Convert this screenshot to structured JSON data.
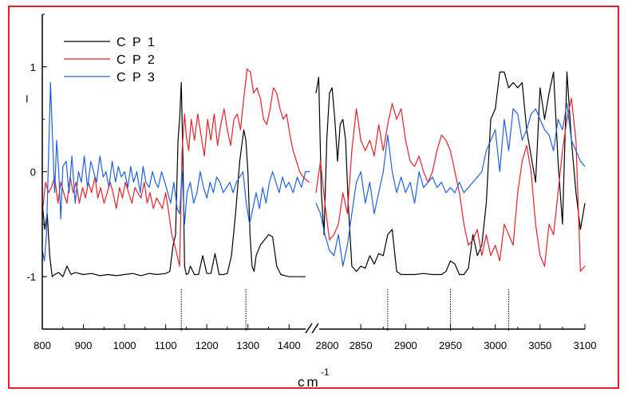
{
  "chart_data": {
    "type": "line",
    "title": "",
    "xlabel": "cm",
    "xlabel_superscript": "-1",
    "ylabel": "",
    "ylim": [
      -1.5,
      1.5
    ],
    "y_ticks": [
      {
        "value": 1,
        "label": "1"
      },
      {
        "value": 0,
        "label": "0"
      },
      {
        "value": -1,
        "label": "-1"
      }
    ],
    "y_stray_mark": "I",
    "legend_position": "top-left",
    "grid": false,
    "frame_color": "#e8202a",
    "axis_break": true,
    "segments": [
      {
        "name": "low",
        "xlim": [
          800,
          1450
        ],
        "ticks": [
          800,
          900,
          1000,
          1100,
          1200,
          1300,
          1400
        ],
        "tick_labels": [
          "800",
          "900",
          "1000",
          "1100",
          "1200",
          "1300",
          "1400"
        ]
      },
      {
        "name": "high",
        "xlim": [
          2800,
          3100
        ],
        "ticks": [
          2850,
          2900,
          2950,
          3000,
          3050,
          3100
        ],
        "tick_labels": [
          "2850",
          "2900",
          "2950",
          "3000",
          "3050",
          "3100"
        ]
      }
    ],
    "break_tick_label": "2800",
    "reference_lines": [
      1138,
      1295,
      2880,
      2950,
      3015
    ],
    "series": [
      {
        "name": "C P 1",
        "color": "#000000",
        "low": {
          "x": [
            800,
            806,
            812,
            818,
            824,
            830,
            840,
            850,
            860,
            870,
            880,
            900,
            920,
            940,
            960,
            980,
            1000,
            1020,
            1040,
            1060,
            1080,
            1100,
            1110,
            1118,
            1124,
            1130,
            1134,
            1138,
            1142,
            1146,
            1150,
            1155,
            1160,
            1170,
            1180,
            1190,
            1200,
            1210,
            1220,
            1230,
            1240,
            1250,
            1260,
            1270,
            1280,
            1290,
            1295,
            1300,
            1305,
            1310,
            1315,
            1320,
            1330,
            1340,
            1350,
            1360,
            1370,
            1380,
            1390,
            1400,
            1420,
            1440
          ],
          "y": [
            -0.3,
            -0.55,
            -0.4,
            -0.8,
            -1.0,
            -0.98,
            -0.96,
            -1.0,
            -0.9,
            -0.98,
            -0.96,
            -0.98,
            -0.97,
            -0.99,
            -0.98,
            -0.99,
            -0.98,
            -0.97,
            -0.99,
            -0.97,
            -0.98,
            -0.97,
            -0.95,
            -0.7,
            -0.6,
            0.3,
            0.5,
            0.85,
            0.1,
            -0.9,
            -0.98,
            -0.97,
            -0.9,
            -0.98,
            -0.98,
            -0.8,
            -0.97,
            -0.97,
            -0.78,
            -0.98,
            -0.98,
            -0.97,
            -0.8,
            -0.4,
            0.1,
            0.4,
            0.3,
            0.0,
            -0.6,
            -0.9,
            -0.95,
            -0.8,
            -0.7,
            -0.65,
            -0.6,
            -0.62,
            -0.9,
            -0.98,
            -0.99,
            -1.0,
            -1.0,
            -1.0
          ]
        },
        "high": {
          "x": [
            2800,
            2803,
            2806,
            2809,
            2812,
            2815,
            2818,
            2821,
            2824,
            2827,
            2830,
            2833,
            2836,
            2840,
            2845,
            2850,
            2855,
            2860,
            2865,
            2870,
            2875,
            2880,
            2885,
            2890,
            2895,
            2900,
            2910,
            2920,
            2930,
            2940,
            2945,
            2950,
            2955,
            2960,
            2965,
            2970,
            2975,
            2980,
            2985,
            2990,
            2995,
            3000,
            3005,
            3010,
            3015,
            3020,
            3025,
            3030,
            3035,
            3040,
            3045,
            3050,
            3055,
            3060,
            3065,
            3070,
            3075,
            3080,
            3085,
            3090,
            3095,
            3100
          ],
          "y": [
            0.75,
            0.9,
            -0.2,
            -0.6,
            0.3,
            0.75,
            0.8,
            0.5,
            0.1,
            0.45,
            0.5,
            0.3,
            -0.3,
            -0.9,
            -0.95,
            -0.9,
            -0.92,
            -0.8,
            -0.88,
            -0.78,
            -0.8,
            -0.6,
            -0.55,
            -0.95,
            -0.98,
            -0.98,
            -0.98,
            -0.97,
            -0.98,
            -0.98,
            -0.95,
            -0.85,
            -0.88,
            -0.98,
            -0.98,
            -0.92,
            -0.6,
            -0.8,
            -0.7,
            -0.3,
            0.5,
            0.6,
            0.95,
            0.95,
            0.8,
            0.85,
            0.8,
            0.85,
            0.4,
            0.15,
            -0.1,
            0.8,
            0.5,
            0.75,
            0.95,
            0.1,
            -0.5,
            0.95,
            0.3,
            -0.2,
            -0.55,
            -0.3
          ]
        }
      },
      {
        "name": "C P 2",
        "color": "#e8202a",
        "low": {
          "x": [
            800,
            808,
            815,
            822,
            830,
            838,
            845,
            852,
            860,
            868,
            875,
            882,
            890,
            898,
            905,
            912,
            920,
            928,
            935,
            942,
            950,
            958,
            965,
            972,
            980,
            988,
            995,
            1002,
            1010,
            1018,
            1025,
            1032,
            1040,
            1048,
            1055,
            1062,
            1070,
            1078,
            1085,
            1092,
            1100,
            1108,
            1115,
            1122,
            1128,
            1134,
            1140,
            1146,
            1150,
            1156,
            1162,
            1170,
            1178,
            1186,
            1194,
            1202,
            1210,
            1218,
            1226,
            1234,
            1242,
            1250,
            1258,
            1266,
            1274,
            1282,
            1290,
            1298,
            1306,
            1314,
            1322,
            1330,
            1338,
            1346,
            1354,
            1362,
            1370,
            1378,
            1386,
            1394,
            1402,
            1410,
            1418,
            1426,
            1434,
            1442,
            1450
          ],
          "y": [
            -0.4,
            -0.1,
            -0.2,
            -0.15,
            -0.05,
            -0.3,
            -0.1,
            -0.2,
            -0.3,
            -0.05,
            -0.2,
            -0.1,
            -0.3,
            -0.15,
            -0.25,
            -0.1,
            -0.2,
            -0.05,
            -0.25,
            -0.15,
            -0.3,
            -0.2,
            -0.1,
            -0.2,
            -0.35,
            -0.15,
            -0.25,
            -0.1,
            -0.2,
            -0.3,
            -0.15,
            -0.2,
            -0.25,
            -0.1,
            -0.3,
            -0.2,
            -0.35,
            -0.25,
            -0.3,
            -0.35,
            -0.2,
            -0.4,
            -0.6,
            -0.7,
            -0.8,
            -0.9,
            0.2,
            0.55,
            0.35,
            0.2,
            0.5,
            0.3,
            0.55,
            0.35,
            0.15,
            0.5,
            0.3,
            0.55,
            0.25,
            0.45,
            0.6,
            0.4,
            0.25,
            0.5,
            0.55,
            0.4,
            0.7,
            0.98,
            0.95,
            0.75,
            0.8,
            0.7,
            0.5,
            0.45,
            0.6,
            0.8,
            0.75,
            0.6,
            0.5,
            0.55,
            0.35,
            0.2,
            0.1,
            0.0,
            -0.05,
            -0.08,
            -0.1
          ]
        },
        "high": {
          "x": [
            2800,
            2805,
            2810,
            2815,
            2820,
            2825,
            2830,
            2835,
            2840,
            2845,
            2850,
            2855,
            2860,
            2865,
            2870,
            2875,
            2880,
            2885,
            2890,
            2895,
            2900,
            2905,
            2910,
            2915,
            2920,
            2925,
            2930,
            2935,
            2940,
            2945,
            2950,
            2955,
            2960,
            2965,
            2970,
            2975,
            2980,
            2985,
            2990,
            2995,
            3000,
            3005,
            3010,
            3015,
            3020,
            3025,
            3030,
            3035,
            3040,
            3045,
            3050,
            3055,
            3060,
            3065,
            3070,
            3075,
            3080,
            3085,
            3090,
            3095,
            3100
          ],
          "y": [
            -0.2,
            0.1,
            -0.3,
            -0.65,
            -0.6,
            -0.5,
            -0.2,
            -0.4,
            0.2,
            0.6,
            0.3,
            0.2,
            0.3,
            0.15,
            0.45,
            0.2,
            0.45,
            0.65,
            0.5,
            0.6,
            0.3,
            0.1,
            0.05,
            0.15,
            0.0,
            -0.1,
            0.0,
            0.2,
            0.35,
            0.3,
            0.2,
            0.0,
            -0.2,
            -0.5,
            -0.7,
            -0.65,
            -0.55,
            -0.8,
            -0.6,
            -0.8,
            -0.7,
            -0.85,
            -0.5,
            -0.6,
            -0.7,
            -0.2,
            0.1,
            0.25,
            0.0,
            -0.5,
            -0.8,
            -0.9,
            -0.5,
            -0.6,
            -0.2,
            0.2,
            0.5,
            0.7,
            0.3,
            -0.95,
            -0.9
          ]
        }
      },
      {
        "name": "C P 3",
        "color": "#2060e0",
        "low": {
          "x": [
            800,
            805,
            810,
            815,
            820,
            825,
            830,
            835,
            840,
            845,
            850,
            858,
            865,
            872,
            880,
            888,
            895,
            902,
            910,
            918,
            925,
            932,
            940,
            948,
            955,
            962,
            970,
            978,
            985,
            992,
            1000,
            1008,
            1015,
            1022,
            1030,
            1038,
            1045,
            1052,
            1060,
            1068,
            1075,
            1082,
            1090,
            1098,
            1105,
            1112,
            1120,
            1128,
            1134,
            1140,
            1146,
            1152,
            1160,
            1168,
            1176,
            1184,
            1192,
            1200,
            1208,
            1216,
            1224,
            1232,
            1240,
            1248,
            1256,
            1264,
            1272,
            1280,
            1288,
            1296,
            1304,
            1312,
            1320,
            1328,
            1336,
            1344,
            1352,
            1360,
            1368,
            1376,
            1384,
            1392,
            1400,
            1410,
            1420,
            1430,
            1440,
            1450
          ],
          "y": [
            -0.75,
            -0.85,
            -0.6,
            0.1,
            0.85,
            0.3,
            -0.2,
            0.3,
            0.0,
            -0.45,
            0.05,
            0.1,
            -0.2,
            0.15,
            -0.3,
            0.0,
            -0.1,
            0.15,
            -0.15,
            0.1,
            0.0,
            -0.1,
            0.15,
            -0.05,
            0.0,
            -0.15,
            0.1,
            -0.1,
            0.05,
            -0.05,
            0.0,
            -0.15,
            0.05,
            -0.1,
            0.0,
            -0.2,
            0.05,
            -0.1,
            -0.15,
            0.0,
            -0.1,
            -0.15,
            0.0,
            -0.1,
            -0.2,
            -0.3,
            -0.1,
            -0.35,
            -0.4,
            0.0,
            -0.5,
            -0.2,
            -0.1,
            -0.3,
            -0.2,
            0.0,
            -0.15,
            -0.25,
            -0.1,
            -0.2,
            -0.05,
            -0.1,
            -0.2,
            -0.15,
            -0.1,
            -0.2,
            -0.1,
            -0.05,
            0.0,
            -0.3,
            -0.5,
            -0.35,
            -0.2,
            -0.35,
            -0.15,
            -0.3,
            -0.1,
            0.0,
            -0.1,
            -0.2,
            -0.05,
            -0.15,
            -0.1,
            -0.2,
            -0.05,
            -0.15,
            0.0,
            0.0
          ]
        },
        "high": {
          "x": [
            2800,
            2805,
            2810,
            2815,
            2820,
            2825,
            2830,
            2835,
            2840,
            2845,
            2850,
            2855,
            2860,
            2865,
            2870,
            2875,
            2880,
            2885,
            2890,
            2895,
            2900,
            2905,
            2910,
            2915,
            2920,
            2925,
            2930,
            2935,
            2940,
            2945,
            2950,
            2955,
            2960,
            2965,
            2970,
            2975,
            2980,
            2985,
            2990,
            2995,
            3000,
            3005,
            3010,
            3015,
            3020,
            3025,
            3030,
            3035,
            3040,
            3045,
            3050,
            3055,
            3060,
            3065,
            3070,
            3075,
            3080,
            3085,
            3090,
            3095,
            3100
          ],
          "y": [
            -0.3,
            -0.4,
            -0.6,
            -0.75,
            -0.8,
            -0.6,
            -0.9,
            -0.7,
            -0.4,
            -0.1,
            0.0,
            -0.3,
            -0.1,
            -0.4,
            -0.2,
            0.0,
            0.35,
            0.0,
            -0.2,
            -0.05,
            -0.2,
            -0.1,
            -0.3,
            0.0,
            -0.15,
            -0.1,
            -0.05,
            -0.15,
            -0.1,
            -0.2,
            -0.15,
            -0.2,
            -0.1,
            -0.2,
            -0.15,
            -0.1,
            -0.05,
            0.0,
            0.2,
            0.3,
            0.4,
            0.0,
            0.5,
            0.2,
            0.6,
            0.55,
            0.3,
            0.4,
            0.55,
            0.6,
            0.5,
            0.4,
            0.35,
            0.2,
            0.5,
            0.4,
            0.65,
            0.3,
            0.2,
            0.1,
            0.05
          ]
        }
      }
    ]
  }
}
